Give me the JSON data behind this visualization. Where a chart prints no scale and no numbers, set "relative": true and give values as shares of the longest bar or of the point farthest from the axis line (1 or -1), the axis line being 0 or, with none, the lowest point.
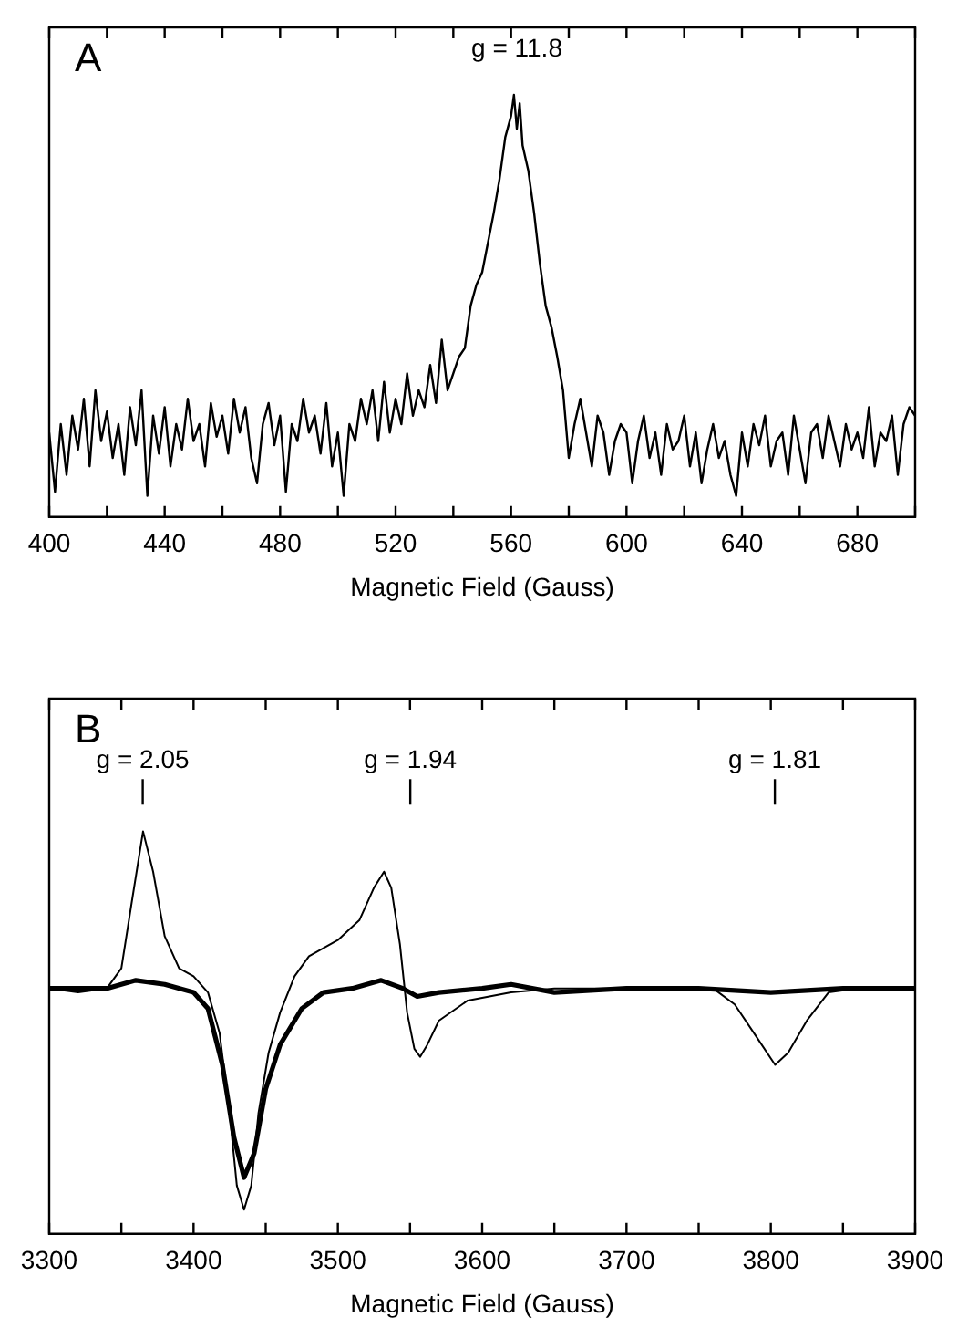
{
  "chart_data": [
    {
      "type": "line",
      "relative": true,
      "xlabel": "Magnetic Field (Gauss)",
      "xlim": [
        400,
        700
      ],
      "xticks": [
        400,
        {
          "value": 420,
          "label": null
        },
        440,
        {
          "value": 460,
          "label": null
        },
        480,
        {
          "value": 500,
          "label": null
        },
        520,
        {
          "value": 540,
          "label": null
        },
        560,
        {
          "value": 580,
          "label": null
        },
        600,
        {
          "value": 620,
          "label": null
        },
        640,
        {
          "value": 660,
          "label": null
        },
        680,
        {
          "value": 700,
          "label": null
        }
      ],
      "grid": false,
      "legend": false,
      "tick_labels": "x",
      "marker": "none",
      "line_style": "solid",
      "annotations": [
        "A",
        "g = 11.8"
      ],
      "series": [
        {
          "color": "#000000",
          "x": [
            400,
            402,
            404,
            406,
            408,
            410,
            412,
            414,
            416,
            418,
            420,
            422,
            424,
            426,
            428,
            430,
            432,
            434,
            436,
            438,
            440,
            442,
            444,
            446,
            448,
            450,
            452,
            454,
            456,
            458,
            460,
            462,
            464,
            466,
            468,
            470,
            472,
            474,
            476,
            478,
            480,
            482,
            484,
            486,
            488,
            490,
            492,
            494,
            496,
            498,
            500,
            502,
            504,
            506,
            508,
            510,
            512,
            514,
            516,
            518,
            520,
            522,
            524,
            526,
            528,
            530,
            532,
            534,
            536,
            538,
            540,
            542,
            544,
            546,
            548,
            550,
            552,
            554,
            556,
            558,
            560,
            561,
            562,
            563,
            564,
            566,
            568,
            570,
            572,
            574,
            576,
            578,
            580,
            582,
            584,
            586,
            588,
            590,
            592,
            594,
            596,
            598,
            600,
            602,
            604,
            606,
            608,
            610,
            612,
            614,
            616,
            618,
            620,
            622,
            624,
            626,
            628,
            630,
            632,
            634,
            636,
            638,
            640,
            642,
            644,
            646,
            648,
            650,
            652,
            654,
            656,
            658,
            660,
            662,
            664,
            666,
            668,
            670,
            672,
            674,
            676,
            678,
            680,
            682,
            684,
            686,
            688,
            690,
            692,
            694,
            696,
            698,
            700
          ],
          "values": [
            0.2,
            0.06,
            0.22,
            0.1,
            0.24,
            0.16,
            0.28,
            0.12,
            0.3,
            0.18,
            0.25,
            0.14,
            0.22,
            0.1,
            0.26,
            0.17,
            0.3,
            0.05,
            0.24,
            0.15,
            0.26,
            0.12,
            0.22,
            0.16,
            0.28,
            0.18,
            0.22,
            0.12,
            0.27,
            0.19,
            0.24,
            0.15,
            0.28,
            0.2,
            0.26,
            0.14,
            0.08,
            0.22,
            0.27,
            0.17,
            0.24,
            0.06,
            0.22,
            0.18,
            0.28,
            0.2,
            0.24,
            0.15,
            0.27,
            0.12,
            0.2,
            0.05,
            0.22,
            0.18,
            0.28,
            0.22,
            0.3,
            0.18,
            0.32,
            0.2,
            0.28,
            0.22,
            0.34,
            0.24,
            0.3,
            0.26,
            0.36,
            0.27,
            0.42,
            0.3,
            0.34,
            0.38,
            0.4,
            0.5,
            0.55,
            0.58,
            0.65,
            0.72,
            0.8,
            0.9,
            0.95,
            1.0,
            0.92,
            0.98,
            0.88,
            0.82,
            0.72,
            0.6,
            0.5,
            0.45,
            0.38,
            0.3,
            0.14,
            0.22,
            0.28,
            0.2,
            0.12,
            0.24,
            0.2,
            0.1,
            0.18,
            0.22,
            0.2,
            0.08,
            0.18,
            0.24,
            0.14,
            0.2,
            0.1,
            0.22,
            0.16,
            0.18,
            0.24,
            0.12,
            0.2,
            0.08,
            0.16,
            0.22,
            0.14,
            0.18,
            0.1,
            0.05,
            0.2,
            0.12,
            0.22,
            0.17,
            0.24,
            0.12,
            0.18,
            0.2,
            0.1,
            0.24,
            0.16,
            0.08,
            0.2,
            0.22,
            0.14,
            0.24,
            0.18,
            0.12,
            0.22,
            0.16,
            0.2,
            0.14,
            0.26,
            0.12,
            0.2,
            0.18,
            0.24,
            0.1,
            0.22,
            0.26,
            0.24
          ]
        }
      ]
    },
    {
      "type": "line",
      "relative": true,
      "xlabel": "Magnetic Field (Gauss)",
      "xlim": [
        3300,
        3900
      ],
      "xticks": [
        3300,
        {
          "value": 3350,
          "label": null
        },
        3400,
        {
          "value": 3450,
          "label": null
        },
        3500,
        {
          "value": 3550,
          "label": null
        },
        3600,
        {
          "value": 3650,
          "label": null
        },
        3700,
        {
          "value": 3750,
          "label": null
        },
        3800,
        {
          "value": 3850,
          "label": null
        },
        3900
      ],
      "grid": false,
      "legend": false,
      "tick_labels": "x",
      "marker": "none",
      "line_style": "solid",
      "annotations": [
        "B",
        "g = 2.05",
        "g = 1.94",
        "g = 1.81"
      ],
      "series": [
        {
          "color": "#000000",
          "x": [
            3300,
            3320,
            3340,
            3350,
            3357,
            3365,
            3372,
            3380,
            3390,
            3400,
            3410,
            3418,
            3425,
            3430,
            3435,
            3440,
            3445,
            3452,
            3460,
            3470,
            3480,
            3500,
            3515,
            3525,
            3532,
            3537,
            3543,
            3548,
            3553,
            3557,
            3562,
            3570,
            3590,
            3620,
            3650,
            3700,
            3760,
            3775,
            3790,
            3803,
            3812,
            3825,
            3840,
            3860,
            3900
          ],
          "values": [
            0.61,
            0.6,
            0.61,
            0.66,
            0.82,
            1.0,
            0.9,
            0.74,
            0.66,
            0.64,
            0.6,
            0.5,
            0.3,
            0.12,
            0.06,
            0.12,
            0.3,
            0.45,
            0.55,
            0.64,
            0.69,
            0.73,
            0.78,
            0.86,
            0.9,
            0.86,
            0.72,
            0.55,
            0.46,
            0.44,
            0.47,
            0.53,
            0.58,
            0.6,
            0.61,
            0.61,
            0.61,
            0.57,
            0.49,
            0.42,
            0.45,
            0.53,
            0.6,
            0.61,
            0.61
          ]
        },
        {
          "color": "#000000",
          "x": [
            3300,
            3340,
            3360,
            3380,
            3400,
            3410,
            3420,
            3428,
            3435,
            3442,
            3450,
            3460,
            3475,
            3490,
            3510,
            3530,
            3545,
            3555,
            3570,
            3600,
            3620,
            3650,
            3700,
            3750,
            3800,
            3850,
            3900
          ],
          "values": [
            0.61,
            0.61,
            0.63,
            0.62,
            0.6,
            0.56,
            0.42,
            0.24,
            0.14,
            0.2,
            0.36,
            0.47,
            0.56,
            0.6,
            0.61,
            0.63,
            0.61,
            0.59,
            0.6,
            0.61,
            0.62,
            0.6,
            0.61,
            0.61,
            0.6,
            0.61,
            0.61
          ]
        }
      ]
    }
  ]
}
